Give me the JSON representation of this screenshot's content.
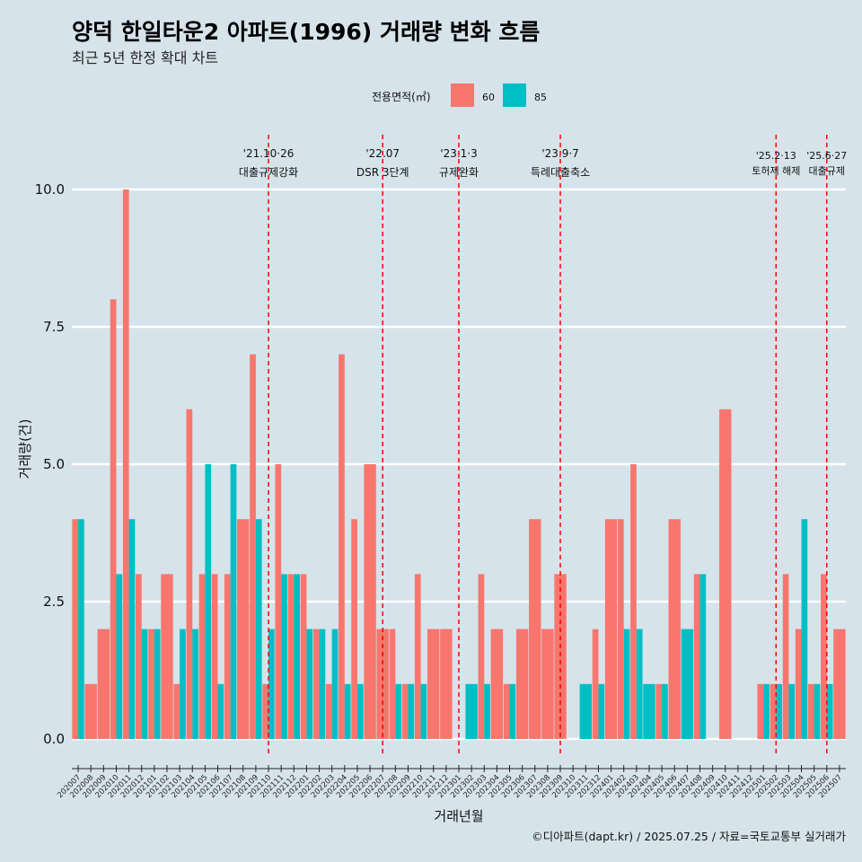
{
  "chart_data": {
    "type": "bar",
    "title": "양덕 한일타운2 아파트(1996) 거래량 변화 흐름",
    "subtitle": "최근 5년 한정 확대 차트",
    "xlabel": "거래년월",
    "ylabel": "거래량(건)",
    "ylim": [
      -0.4,
      10.8
    ],
    "yticks": [
      "0.0",
      "2.5",
      "5.0",
      "7.5",
      "10.0"
    ],
    "ytick_values": [
      0,
      2.5,
      5,
      7.5,
      10
    ],
    "legend": {
      "title": "전용면적(㎡)",
      "position": "top",
      "entries": [
        {
          "name": "60",
          "color": "#f8766d"
        },
        {
          "name": "85",
          "color": "#00bfc4"
        }
      ]
    },
    "categories": [
      "202007",
      "202008",
      "202009",
      "202010",
      "202011",
      "202012",
      "202101",
      "202102",
      "202103",
      "202104",
      "202105",
      "202106",
      "202107",
      "202108",
      "202109",
      "202110",
      "202111",
      "202112",
      "202201",
      "202202",
      "202203",
      "202204",
      "202205",
      "202206",
      "202207",
      "202208",
      "202209",
      "202210",
      "202211",
      "202212",
      "202301",
      "202302",
      "202303",
      "202304",
      "202305",
      "202306",
      "202307",
      "202308",
      "202309",
      "202310",
      "202311",
      "202312",
      "202401",
      "202402",
      "202403",
      "202404",
      "202405",
      "202406",
      "202407",
      "202408",
      "202409",
      "202410",
      "202411",
      "202412",
      "202501",
      "202502",
      "202503",
      "202504",
      "202505",
      "202506",
      "202507"
    ],
    "series": [
      {
        "name": "60",
        "color": "#f8766d",
        "values": [
          4,
          1,
          2,
          8,
          10,
          3,
          2,
          3,
          1,
          6,
          3,
          3,
          3,
          4,
          7,
          1,
          5,
          3,
          3,
          2,
          1,
          7,
          4,
          5,
          2,
          2,
          1,
          3,
          2,
          2,
          0,
          0,
          3,
          2,
          1,
          2,
          4,
          2,
          3,
          0,
          0,
          2,
          4,
          4,
          5,
          0,
          1,
          4,
          0,
          3,
          0,
          6,
          0,
          0,
          1,
          1,
          3,
          2,
          1,
          3,
          2
        ]
      },
      {
        "name": "85",
        "color": "#00bfc4",
        "values": [
          4,
          0,
          0,
          3,
          4,
          2,
          2,
          0,
          2,
          2,
          5,
          1,
          5,
          0,
          4,
          2,
          3,
          3,
          2,
          2,
          2,
          1,
          1,
          0,
          0,
          1,
          1,
          1,
          0,
          0,
          0,
          1,
          1,
          0,
          1,
          0,
          0,
          0,
          0,
          0,
          1,
          1,
          0,
          2,
          2,
          1,
          1,
          0,
          2,
          3,
          0,
          0,
          0,
          0,
          1,
          1,
          1,
          4,
          1,
          1,
          0
        ]
      }
    ],
    "events": [
      {
        "category": "202110",
        "line1": "'21.10·26",
        "line2": "대출규제강화"
      },
      {
        "category": "202207",
        "line1": "'22.07",
        "line2": "DSR 3단계"
      },
      {
        "category": "202301",
        "line1": "'23.1·3",
        "line2": "규제완화"
      },
      {
        "category": "202309",
        "line1": "'23.9·7",
        "line2": "특례대출축소"
      },
      {
        "category": "202502",
        "line1": "'25.2·13",
        "line2": "토허제 해제"
      },
      {
        "category": "202506",
        "line1": "'25.6·27",
        "line2": "대출규제"
      }
    ],
    "caption": "©디아파트(dapt.kr) / 2025.07.25 / 자료=국토교통부 실거래가"
  }
}
